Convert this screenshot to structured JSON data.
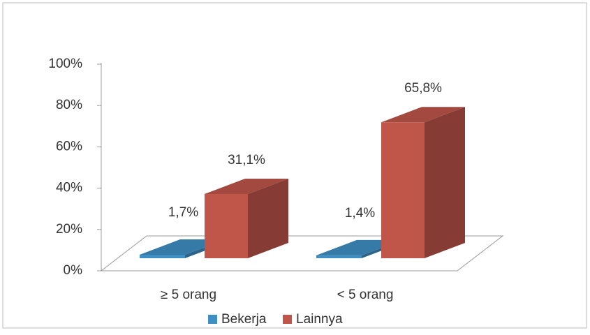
{
  "chart_data": {
    "type": "bar3d",
    "categories": [
      "≥ 5 orang",
      "< 5 orang"
    ],
    "series": [
      {
        "name": "Bekerja",
        "color": "#3f8fc5",
        "values": [
          1.7,
          1.4
        ],
        "value_labels": [
          "1,7%",
          "1,4%"
        ]
      },
      {
        "name": "Lainnya",
        "color": "#c0564a",
        "values": [
          31.1,
          65.8
        ],
        "value_labels": [
          "31,1%",
          "65,8%"
        ]
      }
    ],
    "ylim": [
      0,
      100
    ],
    "yticks": [
      {
        "value": 0,
        "label": "0%"
      },
      {
        "value": 20,
        "label": "20%"
      },
      {
        "value": 40,
        "label": "40%"
      },
      {
        "value": 60,
        "label": "60%"
      },
      {
        "value": 80,
        "label": "80%"
      },
      {
        "value": 100,
        "label": "100%"
      }
    ],
    "legend": "bottom"
  }
}
